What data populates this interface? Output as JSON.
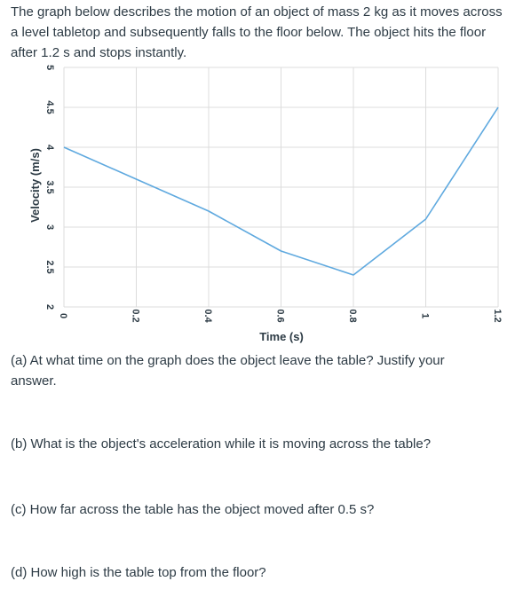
{
  "intro": "The graph below describes the motion of an object of mass 2 kg as it moves across a level tabletop and subsequently falls to the floor below. The object hits the floor after 1.2 s and stops instantly.",
  "questions": {
    "a": "(a) At what time on the graph does the object leave the table? Justify your answer.",
    "b": "(b) What is the object's acceleration while it is moving across the table?",
    "c": "(c) How far across the table has the object moved after 0.5 s?",
    "d": "(d) How high is the table top from the floor?"
  },
  "chart_data": {
    "type": "line",
    "xlabel": "Time (s)",
    "ylabel": "Velocity (m/s)",
    "xlim": [
      0,
      1.2
    ],
    "ylim": [
      2,
      5
    ],
    "x_ticks": [
      "0",
      "0.2",
      "0.4",
      "0.6",
      "0.8",
      "1",
      "1.2"
    ],
    "y_ticks": [
      "2",
      "2.5",
      "3",
      "3.5",
      "4",
      "4.5",
      "5"
    ],
    "grid": true,
    "series": [
      {
        "x": [
          0,
          0.2,
          0.4,
          0.6,
          0.8,
          1.0,
          1.2
        ],
        "y": [
          4.0,
          3.6,
          3.2,
          2.7,
          2.4,
          3.1,
          4.5
        ],
        "color": "#5fa9df"
      }
    ]
  }
}
